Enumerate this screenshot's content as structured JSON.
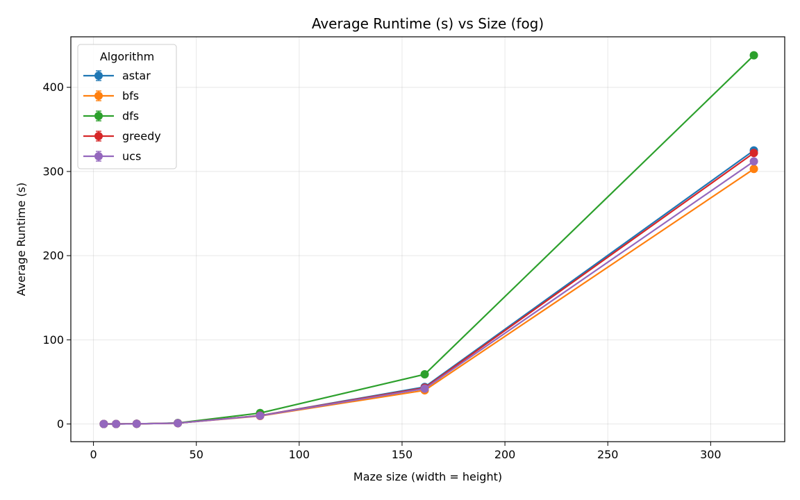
{
  "chart_data": {
    "type": "line",
    "title": "Average Runtime (s) vs Size (fog)",
    "xlabel": "Maze size (width = height)",
    "ylabel": "Average Runtime (s)",
    "xlim": [
      -11,
      336
    ],
    "ylim": [
      -21,
      460
    ],
    "xticks": [
      0,
      50,
      100,
      150,
      200,
      250,
      300
    ],
    "yticks": [
      0,
      100,
      200,
      300,
      400
    ],
    "grid": true,
    "legend": {
      "title": "Algorithm",
      "position": "top-left"
    },
    "x": [
      5,
      11,
      21,
      41,
      81,
      161,
      321
    ],
    "series": [
      {
        "name": "astar",
        "color": "#1f77b4",
        "values": [
          0.02,
          0.05,
          0.2,
          1.0,
          10,
          44,
          325
        ]
      },
      {
        "name": "bfs",
        "color": "#ff7f0e",
        "values": [
          0.02,
          0.05,
          0.2,
          1.0,
          9.5,
          40,
          303
        ]
      },
      {
        "name": "dfs",
        "color": "#2ca02c",
        "values": [
          0.02,
          0.05,
          0.2,
          1.2,
          13,
          59,
          438
        ]
      },
      {
        "name": "greedy",
        "color": "#d62728",
        "values": [
          0.02,
          0.05,
          0.2,
          1.0,
          10,
          43,
          322
        ]
      },
      {
        "name": "ucs",
        "color": "#9467bd",
        "values": [
          0.02,
          0.05,
          0.2,
          1.0,
          9.8,
          42,
          312
        ]
      }
    ]
  }
}
